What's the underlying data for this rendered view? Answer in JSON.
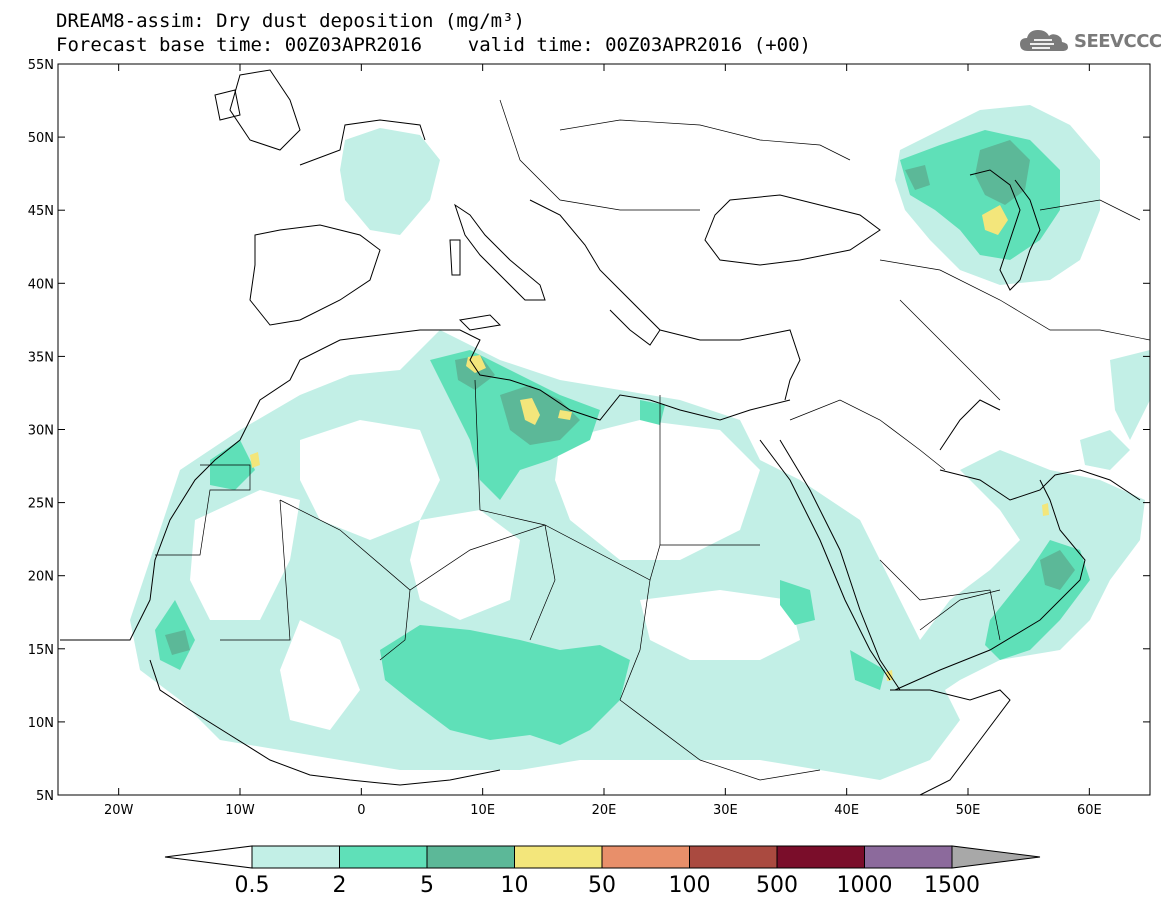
{
  "header": {
    "title_line1": "DREAM8-assim: Dry dust deposition (mg/m³)",
    "title_line2": "Forecast base time: 00Z03APR2016    valid time: 00Z03APR2016 (+00)",
    "logo_text": "SEEVCCC",
    "logo_icon": "cloud-icon"
  },
  "map": {
    "lon_range": [
      -25,
      65
    ],
    "lat_range": [
      5,
      55
    ],
    "lat_labels": [
      "55N",
      "50N",
      "45N",
      "40N",
      "35N",
      "30N",
      "25N",
      "20N",
      "15N",
      "10N",
      "5N"
    ],
    "lon_labels": [
      "20W",
      "10W",
      "0",
      "10E",
      "20E",
      "30E",
      "40E",
      "50E",
      "60E"
    ]
  },
  "colorbar": {
    "labels": [
      "0.5",
      "2",
      "5",
      "10",
      "50",
      "100",
      "500",
      "1000",
      "1500"
    ],
    "colors": [
      "#c2efe6",
      "#5fe0b8",
      "#5cb898",
      "#f3e67b",
      "#e88f6a",
      "#aa4a40",
      "#7a0d2a",
      "#8c6a9c"
    ],
    "under_color": "#ffffff",
    "over_color": "#a8a8a8"
  }
}
